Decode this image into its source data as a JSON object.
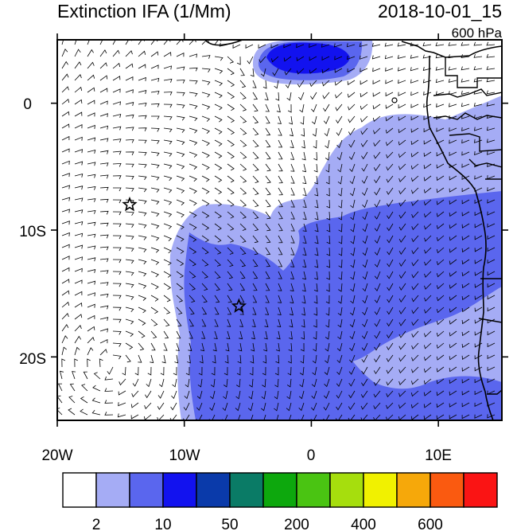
{
  "header": {
    "title": "Extinction IFA (1/Mm)",
    "datetime": "2018-10-01_15",
    "level": "600 hPa"
  },
  "axes": {
    "x_ticks": [
      {
        "lon": -20,
        "label": "20W"
      },
      {
        "lon": -10,
        "label": "10W"
      },
      {
        "lon": 0,
        "label": "0"
      },
      {
        "lon": 10,
        "label": "10E"
      }
    ],
    "y_ticks": [
      {
        "lat": 0,
        "label": "0"
      },
      {
        "lat": -10,
        "label": "10S"
      },
      {
        "lat": -20,
        "label": "20S"
      }
    ],
    "lon_range": [
      -20,
      15
    ],
    "lat_range": [
      -25,
      5
    ]
  },
  "markers": [
    {
      "name": "star-marker-west",
      "lon": -14.3,
      "lat": -8.0
    },
    {
      "name": "star-marker-central",
      "lon": -5.7,
      "lat": -16.0
    }
  ],
  "colorbar": {
    "colors": [
      "#ffffff",
      "#a5acf5",
      "#5a66ee",
      "#1212ef",
      "#0a3aaa",
      "#0a7b66",
      "#0da80d",
      "#4ac412",
      "#a6de0d",
      "#f1f100",
      "#f6a80a",
      "#fa5a10",
      "#fa1414"
    ],
    "labels": [
      {
        "after_box": 1,
        "text": "2"
      },
      {
        "after_box": 3,
        "text": "10"
      },
      {
        "after_box": 5,
        "text": "50"
      },
      {
        "after_box": 7,
        "text": "200"
      },
      {
        "after_box": 9,
        "text": "400"
      },
      {
        "after_box": 11,
        "text": "600"
      }
    ]
  },
  "legend_colors": {
    "light": "#a5acf5",
    "medium": "#5a66ee",
    "dark": "#1212ef",
    "ocean_bg": "#ffffff"
  }
}
